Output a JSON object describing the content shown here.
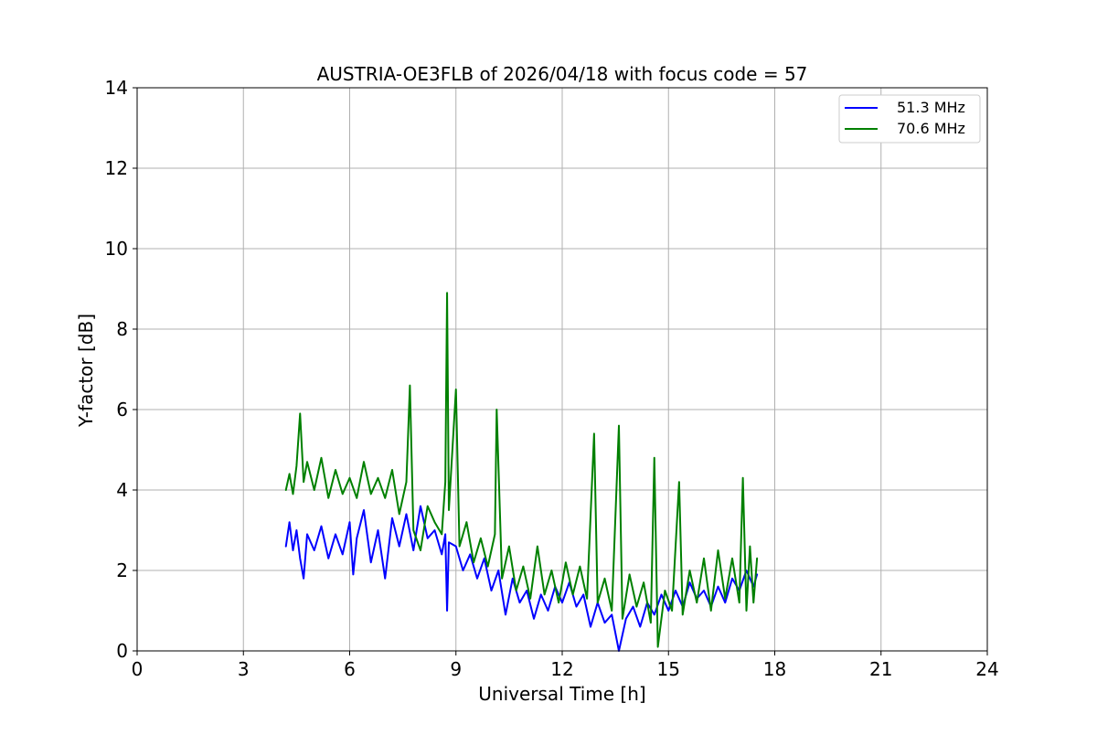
{
  "chart_data": {
    "type": "line",
    "title": "AUSTRIA-OE3FLB of 2026/04/18 with focus code = 57",
    "xlabel": "Universal Time [h]",
    "ylabel": "Y-factor [dB]",
    "xlim": [
      0,
      24
    ],
    "ylim": [
      0,
      14
    ],
    "xticks": [
      "0",
      "3",
      "6",
      "9",
      "12",
      "15",
      "18",
      "21",
      "24"
    ],
    "yticks": [
      "0",
      "2",
      "4",
      "6",
      "8",
      "10",
      "12",
      "14"
    ],
    "grid": true,
    "legend_position": "top-right",
    "series": [
      {
        "name": "51.3 MHz",
        "color": "#0000ff",
        "x_range": [
          4.2,
          17.5
        ],
        "points": [
          [
            4.2,
            2.6
          ],
          [
            4.3,
            3.2
          ],
          [
            4.4,
            2.5
          ],
          [
            4.5,
            3.0
          ],
          [
            4.6,
            2.3
          ],
          [
            4.7,
            1.8
          ],
          [
            4.8,
            2.9
          ],
          [
            5.0,
            2.5
          ],
          [
            5.2,
            3.1
          ],
          [
            5.4,
            2.3
          ],
          [
            5.6,
            2.9
          ],
          [
            5.8,
            2.4
          ],
          [
            6.0,
            3.2
          ],
          [
            6.1,
            1.9
          ],
          [
            6.2,
            2.8
          ],
          [
            6.4,
            3.5
          ],
          [
            6.6,
            2.2
          ],
          [
            6.8,
            3.0
          ],
          [
            7.0,
            1.8
          ],
          [
            7.2,
            3.3
          ],
          [
            7.4,
            2.6
          ],
          [
            7.6,
            3.4
          ],
          [
            7.8,
            2.5
          ],
          [
            8.0,
            3.6
          ],
          [
            8.2,
            2.8
          ],
          [
            8.4,
            3.0
          ],
          [
            8.6,
            2.4
          ],
          [
            8.7,
            2.9
          ],
          [
            8.75,
            1.0
          ],
          [
            8.8,
            2.7
          ],
          [
            9.0,
            2.6
          ],
          [
            9.2,
            2.0
          ],
          [
            9.4,
            2.4
          ],
          [
            9.6,
            1.8
          ],
          [
            9.8,
            2.3
          ],
          [
            10.0,
            1.5
          ],
          [
            10.2,
            2.0
          ],
          [
            10.4,
            0.9
          ],
          [
            10.6,
            1.8
          ],
          [
            10.8,
            1.2
          ],
          [
            11.0,
            1.5
          ],
          [
            11.2,
            0.8
          ],
          [
            11.4,
            1.4
          ],
          [
            11.6,
            1.0
          ],
          [
            11.8,
            1.6
          ],
          [
            12.0,
            1.2
          ],
          [
            12.2,
            1.7
          ],
          [
            12.4,
            1.1
          ],
          [
            12.6,
            1.4
          ],
          [
            12.8,
            0.6
          ],
          [
            13.0,
            1.2
          ],
          [
            13.2,
            0.7
          ],
          [
            13.4,
            0.9
          ],
          [
            13.6,
            0.0
          ],
          [
            13.8,
            0.8
          ],
          [
            14.0,
            1.1
          ],
          [
            14.2,
            0.6
          ],
          [
            14.4,
            1.2
          ],
          [
            14.6,
            0.9
          ],
          [
            14.8,
            1.4
          ],
          [
            15.0,
            1.0
          ],
          [
            15.2,
            1.5
          ],
          [
            15.4,
            1.1
          ],
          [
            15.6,
            1.7
          ],
          [
            15.8,
            1.3
          ],
          [
            16.0,
            1.5
          ],
          [
            16.2,
            1.1
          ],
          [
            16.4,
            1.6
          ],
          [
            16.6,
            1.2
          ],
          [
            16.8,
            1.8
          ],
          [
            17.0,
            1.5
          ],
          [
            17.2,
            2.0
          ],
          [
            17.4,
            1.6
          ],
          [
            17.5,
            1.9
          ]
        ]
      },
      {
        "name": "70.6 MHz",
        "color": "#008000",
        "x_range": [
          4.2,
          17.5
        ],
        "points": [
          [
            4.2,
            4.0
          ],
          [
            4.3,
            4.4
          ],
          [
            4.4,
            3.9
          ],
          [
            4.5,
            4.6
          ],
          [
            4.6,
            5.9
          ],
          [
            4.7,
            4.2
          ],
          [
            4.8,
            4.7
          ],
          [
            5.0,
            4.0
          ],
          [
            5.2,
            4.8
          ],
          [
            5.4,
            3.8
          ],
          [
            5.6,
            4.5
          ],
          [
            5.8,
            3.9
          ],
          [
            6.0,
            4.3
          ],
          [
            6.2,
            3.8
          ],
          [
            6.4,
            4.7
          ],
          [
            6.6,
            3.9
          ],
          [
            6.8,
            4.3
          ],
          [
            7.0,
            3.8
          ],
          [
            7.2,
            4.5
          ],
          [
            7.4,
            3.4
          ],
          [
            7.6,
            4.2
          ],
          [
            7.7,
            6.6
          ],
          [
            7.8,
            3.0
          ],
          [
            8.0,
            2.5
          ],
          [
            8.2,
            3.6
          ],
          [
            8.4,
            3.2
          ],
          [
            8.6,
            2.9
          ],
          [
            8.7,
            4.2
          ],
          [
            8.75,
            8.9
          ],
          [
            8.8,
            3.5
          ],
          [
            9.0,
            6.5
          ],
          [
            9.1,
            2.6
          ],
          [
            9.3,
            3.2
          ],
          [
            9.5,
            2.2
          ],
          [
            9.7,
            2.8
          ],
          [
            9.9,
            2.1
          ],
          [
            10.1,
            2.9
          ],
          [
            10.15,
            6.0
          ],
          [
            10.3,
            1.8
          ],
          [
            10.5,
            2.6
          ],
          [
            10.7,
            1.5
          ],
          [
            10.9,
            2.1
          ],
          [
            11.1,
            1.3
          ],
          [
            11.3,
            2.6
          ],
          [
            11.5,
            1.4
          ],
          [
            11.7,
            2.0
          ],
          [
            11.9,
            1.2
          ],
          [
            12.1,
            2.2
          ],
          [
            12.3,
            1.4
          ],
          [
            12.5,
            2.1
          ],
          [
            12.7,
            1.3
          ],
          [
            12.9,
            5.4
          ],
          [
            13.0,
            1.2
          ],
          [
            13.2,
            1.8
          ],
          [
            13.4,
            1.0
          ],
          [
            13.6,
            5.6
          ],
          [
            13.7,
            0.8
          ],
          [
            13.9,
            1.9
          ],
          [
            14.1,
            1.1
          ],
          [
            14.3,
            1.7
          ],
          [
            14.5,
            0.7
          ],
          [
            14.6,
            4.8
          ],
          [
            14.7,
            0.1
          ],
          [
            14.9,
            1.5
          ],
          [
            15.1,
            1.0
          ],
          [
            15.3,
            4.2
          ],
          [
            15.4,
            0.9
          ],
          [
            15.6,
            2.0
          ],
          [
            15.8,
            1.2
          ],
          [
            16.0,
            2.3
          ],
          [
            16.2,
            1.0
          ],
          [
            16.4,
            2.5
          ],
          [
            16.6,
            1.3
          ],
          [
            16.8,
            2.3
          ],
          [
            17.0,
            1.2
          ],
          [
            17.1,
            4.3
          ],
          [
            17.2,
            1.0
          ],
          [
            17.3,
            2.6
          ],
          [
            17.4,
            1.2
          ],
          [
            17.5,
            2.3
          ]
        ]
      }
    ]
  }
}
